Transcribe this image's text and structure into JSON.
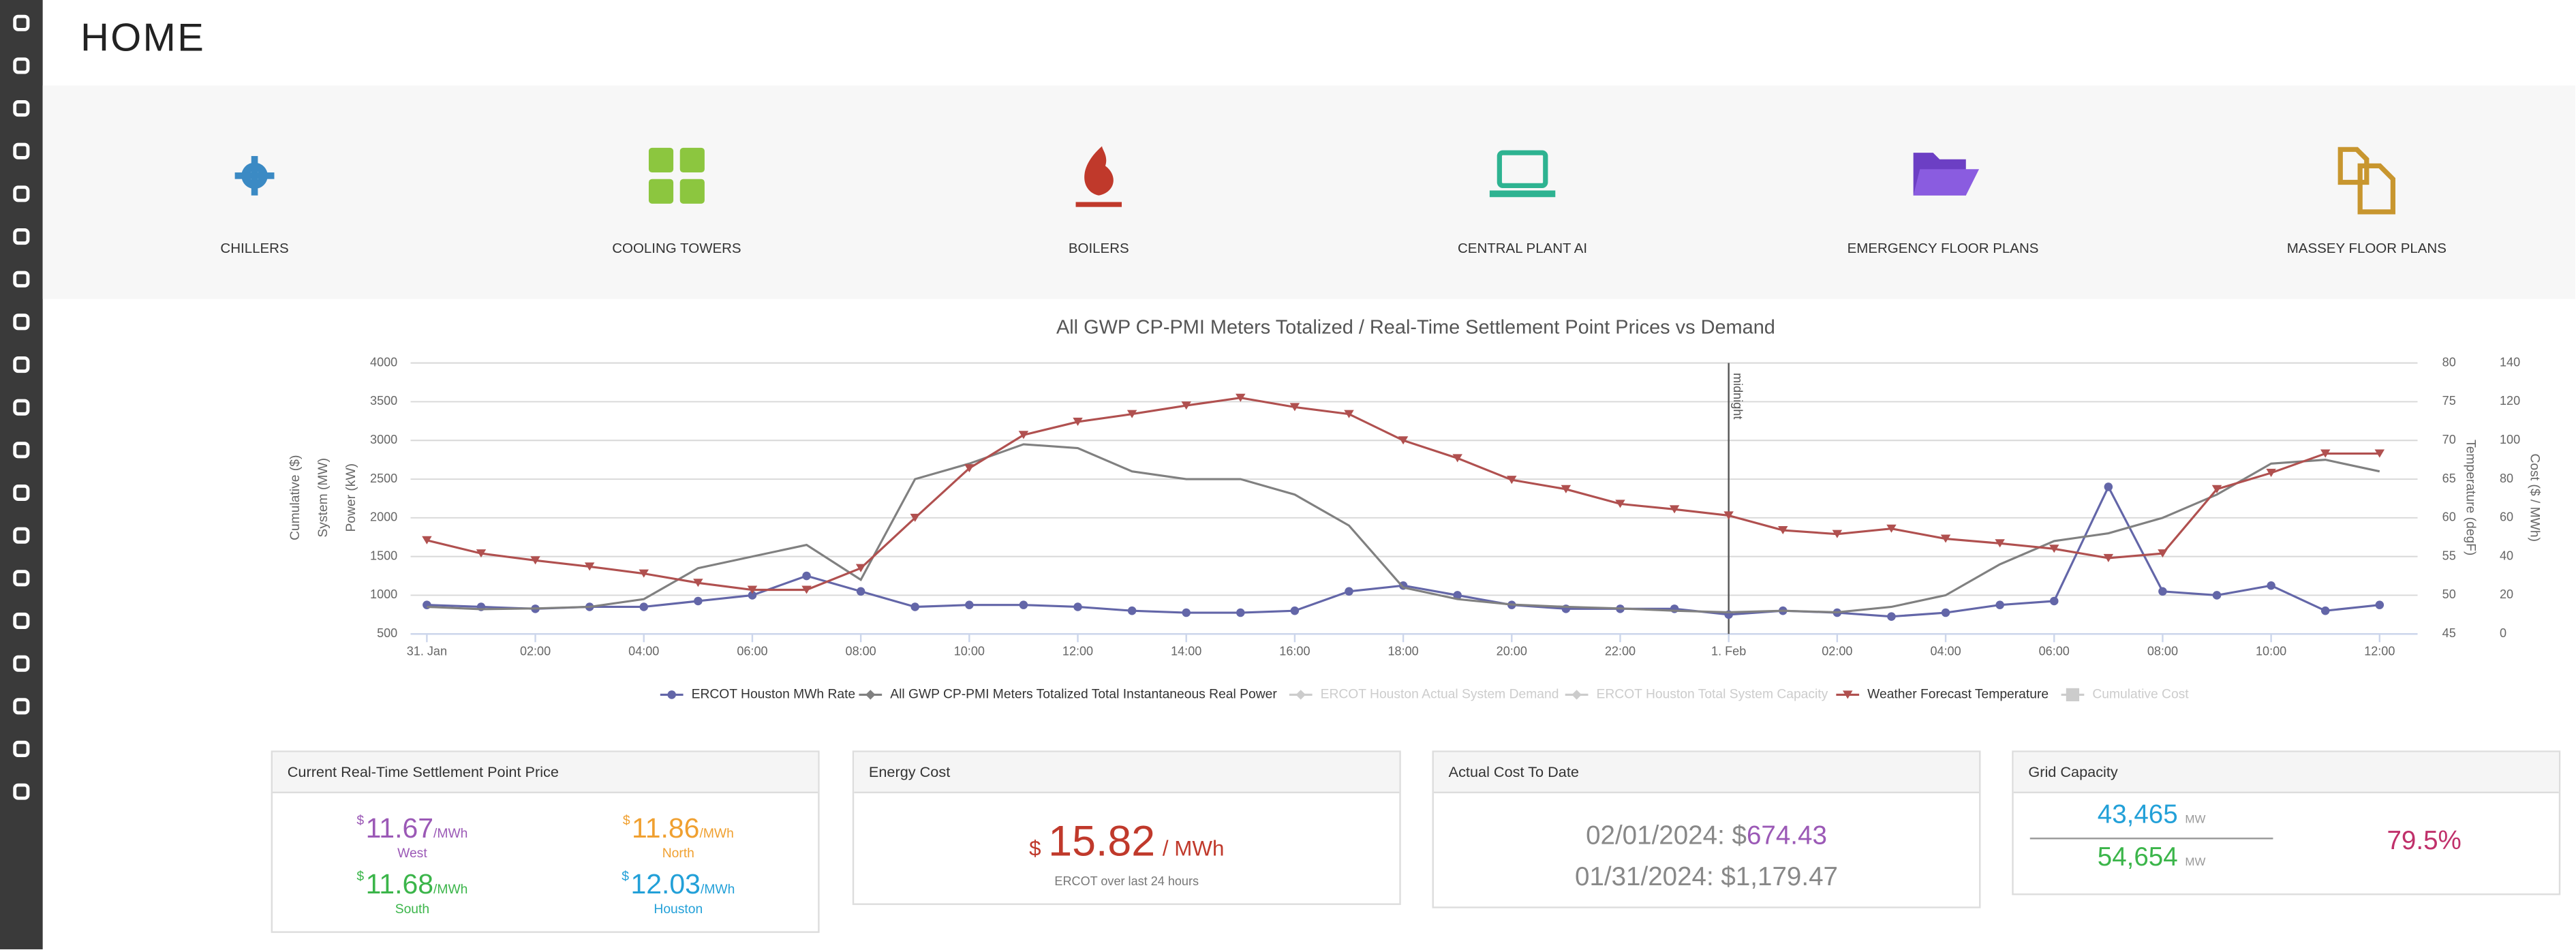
{
  "header": {
    "title": "HOME"
  },
  "tiles": [
    "CHILLERS",
    "COOLING TOWERS",
    "BOILERS",
    "CENTRAL PLANT AI",
    "EMERGENCY FLOOR PLANS",
    "MASSEY FLOOR PLANS"
  ],
  "chart_data": {
    "type": "line",
    "title": "All GWP CP-PMI Meters Totalized / Real-Time Settlement Point Prices vs Demand",
    "y_labels": [
      "Cumulative ($)",
      "System (MW)",
      "Power (kW)"
    ],
    "y2_label": "Temperature (degF)",
    "y3_label": "Cost ($ / MWh)",
    "annotation": {
      "x": 24,
      "label": "midnight"
    },
    "x": [
      0,
      1,
      2,
      3,
      4,
      5,
      6,
      7,
      8,
      9,
      10,
      11,
      12,
      13,
      14,
      15,
      16,
      17,
      18,
      19,
      20,
      21,
      22,
      23,
      24,
      25,
      26,
      27,
      28,
      29,
      30,
      31,
      32,
      33,
      34,
      35,
      36
    ],
    "xlim": [
      -0.3,
      36.7
    ],
    "xticks": [
      {
        "value": 0,
        "label": "31. Jan"
      },
      {
        "value": 2,
        "label": "02:00"
      },
      {
        "value": 4,
        "label": "04:00"
      },
      {
        "value": 6,
        "label": "06:00"
      },
      {
        "value": 8,
        "label": "08:00"
      },
      {
        "value": 10,
        "label": "10:00"
      },
      {
        "value": 12,
        "label": "12:00"
      },
      {
        "value": 14,
        "label": "14:00"
      },
      {
        "value": 16,
        "label": "16:00"
      },
      {
        "value": 18,
        "label": "18:00"
      },
      {
        "value": 20,
        "label": "20:00"
      },
      {
        "value": 22,
        "label": "22:00"
      },
      {
        "value": 24,
        "label": "1. Feb"
      },
      {
        "value": 26,
        "label": "02:00"
      },
      {
        "value": 28,
        "label": "04:00"
      },
      {
        "value": 30,
        "label": "06:00"
      },
      {
        "value": 32,
        "label": "08:00"
      },
      {
        "value": 34,
        "label": "10:00"
      },
      {
        "value": 36,
        "label": "12:00"
      }
    ],
    "ylim": [
      500,
      4000
    ],
    "yticks": [
      500,
      1000,
      1500,
      2000,
      2500,
      3000,
      3500,
      4000
    ],
    "y2lim": [
      45,
      80
    ],
    "y2ticks": [
      45,
      50,
      55,
      60,
      65,
      70,
      75,
      80
    ],
    "y3lim": [
      0,
      140
    ],
    "y3ticks": [
      0,
      20,
      40,
      60,
      80,
      100,
      120,
      140
    ],
    "grid": true,
    "series": [
      {
        "name": "ERCOT Houston MWh Rate",
        "color": "#6366a8",
        "axis": "y3",
        "marker": "circle",
        "values": [
          15,
          14,
          13,
          14,
          14,
          17,
          20,
          30,
          22,
          14,
          15,
          15,
          14,
          12,
          11,
          11,
          12,
          22,
          25,
          20,
          15,
          13,
          13,
          13,
          10,
          12,
          11,
          9,
          11,
          15,
          17,
          76,
          22,
          20,
          25,
          12,
          15
        ]
      },
      {
        "name": "All GWP CP-PMI Meters Totalized Total Instantaneous Real Power",
        "color": "#808080",
        "axis": "y",
        "marker": "diamond",
        "values": [
          850,
          820,
          830,
          850,
          950,
          1350,
          1500,
          1650,
          1200,
          2500,
          2700,
          2950,
          2900,
          2600,
          2500,
          2500,
          2300,
          1900,
          1100,
          950,
          880,
          850,
          830,
          800,
          780,
          800,
          780,
          850,
          1000,
          1400,
          1700,
          1800,
          2000,
          2300,
          2700,
          2750,
          2600
        ]
      },
      {
        "name": "ERCOT Houston Actual System Demand",
        "color": "#cccccc",
        "marker": "diamond",
        "visible": false
      },
      {
        "name": "ERCOT Houston Total System Capacity",
        "color": "#cccccc",
        "marker": "diamond",
        "visible": false
      },
      {
        "name": "Weather Forecast Temperature",
        "color": "#b0504f",
        "axis": "y2",
        "marker": "triangle",
        "values": [
          57.1,
          55.4,
          54.5,
          53.7,
          52.8,
          51.6,
          50.7,
          50.7,
          53.5,
          60,
          66.4,
          70.7,
          72.4,
          73.4,
          74.5,
          75.5,
          74.3,
          73.4,
          70,
          67.7,
          64.9,
          63.7,
          61.8,
          61.1,
          60.3,
          58.4,
          57.9,
          58.6,
          57.3,
          56.7,
          56,
          54.8,
          55.4,
          63.7,
          65.8,
          68.3,
          68.3
        ]
      },
      {
        "name": "Cumulative Cost",
        "color": "#cccccc",
        "marker": "square",
        "visible": false
      }
    ]
  },
  "panels": {
    "price": {
      "title": "Current Real-Time Settlement Point Price",
      "items": [
        {
          "currency": "$",
          "value": "11.67",
          "unit": "/MWh",
          "region": "West"
        },
        {
          "currency": "$",
          "value": "11.86",
          "unit": "/MWh",
          "region": "North"
        },
        {
          "currency": "$",
          "value": "11.68",
          "unit": "/MWh",
          "region": "South"
        },
        {
          "currency": "$",
          "value": "12.03",
          "unit": "/MWh",
          "region": "Houston"
        }
      ]
    },
    "energy": {
      "title": "Energy Cost",
      "currency": "$",
      "value": "15.82",
      "unit": "/ MWh",
      "note": "ERCOT over last 24 hours"
    },
    "actual": {
      "title": "Actual Cost To Date",
      "lines": [
        {
          "label": "02/01/2024: $",
          "value": "674.43"
        },
        {
          "label": "01/31/2024: $1,179.47"
        }
      ]
    },
    "grid": {
      "title": "Grid Capacity",
      "used": "43,465",
      "used_unit": "MW",
      "total": "54,654",
      "total_unit": "MW",
      "percent": "79.5%"
    }
  }
}
